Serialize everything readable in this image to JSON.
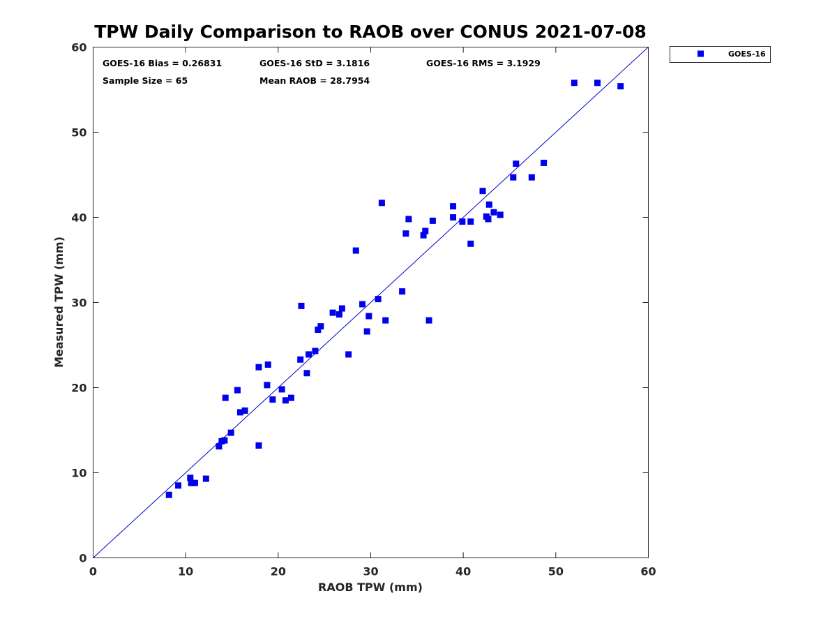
{
  "chart_data": {
    "type": "scatter",
    "title": "TPW Daily Comparison to RAOB over CONUS 2021-07-08",
    "xlabel": "RAOB TPW (mm)",
    "ylabel": "Measured TPW (mm)",
    "xlim": [
      0,
      60
    ],
    "ylim": [
      0,
      60
    ],
    "xticks": [
      "0",
      "10",
      "20",
      "30",
      "40",
      "50",
      "60"
    ],
    "yticks": [
      "0",
      "10",
      "20",
      "30",
      "40",
      "50",
      "60"
    ],
    "grid": false,
    "legend_position": "outside-top-right",
    "stats": {
      "bias": "GOES-16 Bias = 0.26831",
      "std": "GOES-16 StD = 3.1816",
      "rms": "GOES-16 RMS = 3.1929",
      "sample_size": "Sample Size = 65",
      "mean_raob": "Mean RAOB = 28.7954"
    },
    "reference_line": {
      "name": "1:1 line",
      "x": [
        0,
        60
      ],
      "y": [
        0,
        60
      ],
      "color": "#0000cc"
    },
    "series": [
      {
        "name": "GOES-16",
        "color": "#0000ee",
        "marker": "square",
        "points": [
          [
            8.2,
            7.4
          ],
          [
            9.2,
            8.5
          ],
          [
            10.5,
            9.4
          ],
          [
            10.6,
            8.8
          ],
          [
            11.0,
            8.8
          ],
          [
            12.2,
            9.3
          ],
          [
            13.6,
            13.1
          ],
          [
            13.9,
            13.7
          ],
          [
            14.2,
            13.8
          ],
          [
            14.9,
            14.7
          ],
          [
            14.3,
            18.8
          ],
          [
            15.6,
            19.7
          ],
          [
            15.9,
            17.1
          ],
          [
            16.4,
            17.3
          ],
          [
            17.9,
            22.4
          ],
          [
            17.9,
            13.2
          ],
          [
            18.8,
            20.3
          ],
          [
            18.9,
            22.7
          ],
          [
            19.4,
            18.6
          ],
          [
            20.4,
            19.8
          ],
          [
            20.8,
            18.5
          ],
          [
            21.4,
            18.8
          ],
          [
            22.4,
            23.3
          ],
          [
            22.5,
            29.6
          ],
          [
            23.1,
            21.7
          ],
          [
            23.3,
            23.9
          ],
          [
            24.0,
            24.3
          ],
          [
            24.3,
            26.8
          ],
          [
            24.6,
            27.2
          ],
          [
            25.9,
            28.8
          ],
          [
            26.6,
            28.6
          ],
          [
            26.9,
            29.3
          ],
          [
            27.6,
            23.9
          ],
          [
            28.4,
            36.1
          ],
          [
            29.1,
            29.8
          ],
          [
            29.6,
            26.6
          ],
          [
            29.8,
            28.4
          ],
          [
            30.8,
            30.4
          ],
          [
            31.2,
            41.7
          ],
          [
            31.6,
            27.9
          ],
          [
            33.4,
            31.3
          ],
          [
            33.8,
            38.1
          ],
          [
            34.1,
            39.8
          ],
          [
            35.7,
            37.9
          ],
          [
            35.9,
            38.4
          ],
          [
            36.3,
            27.9
          ],
          [
            36.7,
            39.6
          ],
          [
            38.9,
            41.3
          ],
          [
            38.9,
            40.0
          ],
          [
            39.9,
            39.5
          ],
          [
            40.8,
            39.5
          ],
          [
            40.8,
            36.9
          ],
          [
            42.1,
            43.1
          ],
          [
            42.5,
            40.1
          ],
          [
            42.7,
            39.8
          ],
          [
            42.8,
            41.5
          ],
          [
            43.3,
            40.6
          ],
          [
            44.0,
            40.3
          ],
          [
            45.4,
            44.7
          ],
          [
            45.7,
            46.3
          ],
          [
            47.4,
            44.7
          ],
          [
            48.7,
            46.4
          ],
          [
            52.0,
            55.8
          ],
          [
            54.5,
            55.8
          ],
          [
            57.0,
            55.4
          ]
        ]
      }
    ]
  }
}
